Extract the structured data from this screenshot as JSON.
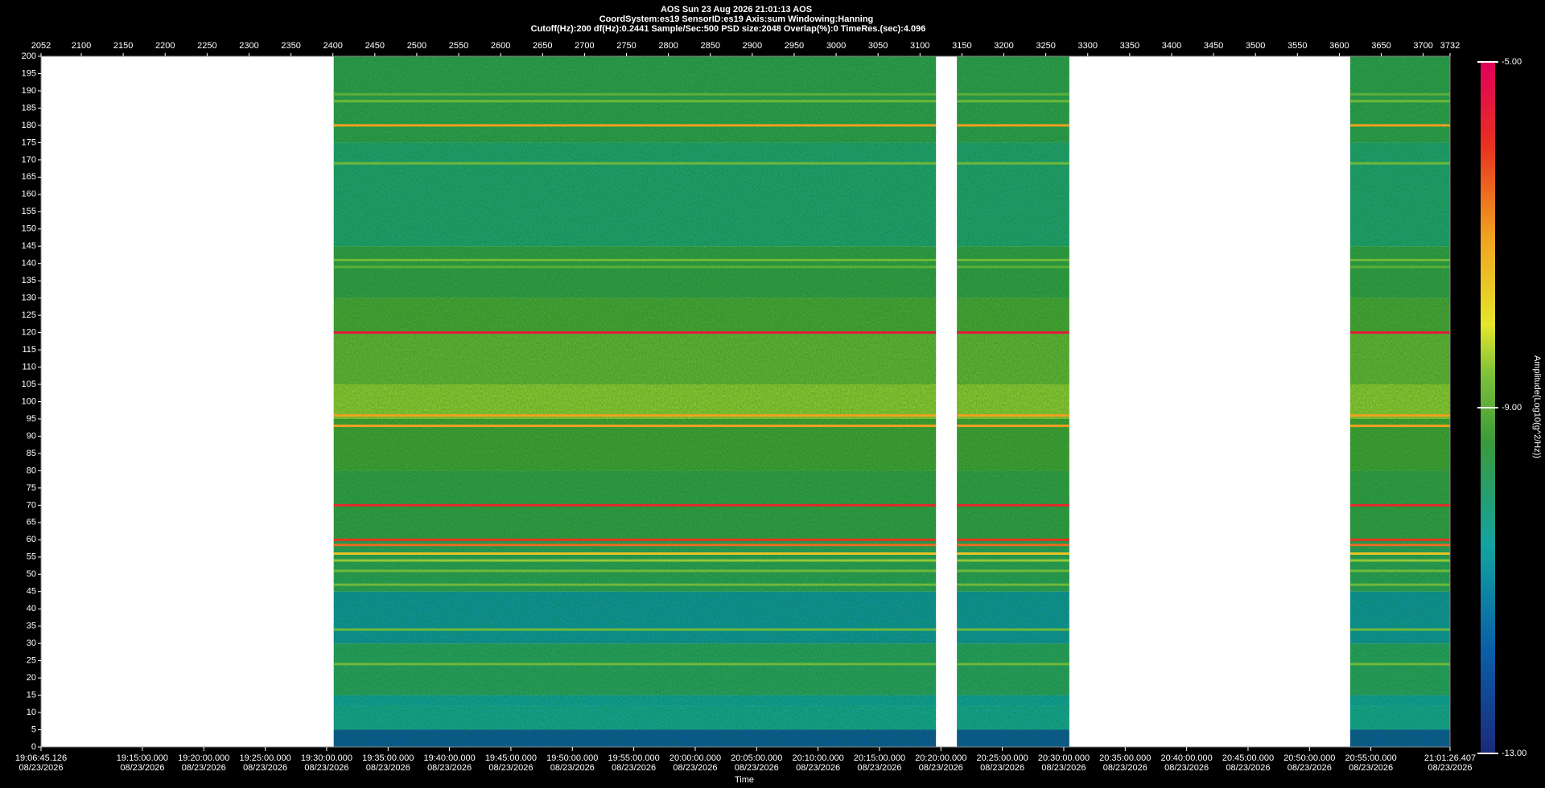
{
  "chart_data": {
    "type": "heatmap",
    "title": "AOS  Sun 23 Aug 2026 21:01:13  AOS",
    "subtitle": [
      "CoordSystem:es19    SensorID:es19     Axis:sum     Windowing:Hanning",
      "Cutoff(Hz):200       df(Hz):0.2441       Sample/Sec:500       PSD size:2048       Overlap(%):0         TimeRes.(sec):4.096"
    ],
    "x_label": "Time",
    "colorbar_label": "Amplitude(Log10(g^2/Hz))",
    "xlim": [
      2052,
      3732
    ],
    "x2ticks": [
      2052,
      2100,
      2150,
      2200,
      2250,
      2300,
      2350,
      2400,
      2450,
      2500,
      2550,
      2600,
      2650,
      2700,
      2750,
      2800,
      2850,
      2900,
      2950,
      3000,
      3050,
      3100,
      3150,
      3200,
      3250,
      3300,
      3350,
      3400,
      3450,
      3500,
      3550,
      3600,
      3650,
      3700,
      3732
    ],
    "xticks": [
      {
        "value": 2052,
        "label": "19:06:45.126",
        "date": "08/23/2026"
      },
      {
        "value": 2172.82,
        "label": "19:15:00.000",
        "date": "08/23/2026"
      },
      {
        "value": 2246.06,
        "label": "19:20:00.000",
        "date": "08/23/2026"
      },
      {
        "value": 2319.3,
        "label": "19:25:00.000",
        "date": "08/23/2026"
      },
      {
        "value": 2392.54,
        "label": "19:30:00.000",
        "date": "08/23/2026"
      },
      {
        "value": 2465.78,
        "label": "19:35:00.000",
        "date": "08/23/2026"
      },
      {
        "value": 2539.02,
        "label": "19:40:00.000",
        "date": "08/23/2026"
      },
      {
        "value": 2612.26,
        "label": "19:45:00.000",
        "date": "08/23/2026"
      },
      {
        "value": 2685.51,
        "label": "19:50:00.000",
        "date": "08/23/2026"
      },
      {
        "value": 2758.75,
        "label": "19:55:00.000",
        "date": "08/23/2026"
      },
      {
        "value": 2831.99,
        "label": "20:00:00.000",
        "date": "08/23/2026"
      },
      {
        "value": 2905.23,
        "label": "20:05:00.000",
        "date": "08/23/2026"
      },
      {
        "value": 2978.47,
        "label": "20:10:00.000",
        "date": "08/23/2026"
      },
      {
        "value": 3051.71,
        "label": "20:15:00.000",
        "date": "08/23/2026"
      },
      {
        "value": 3124.95,
        "label": "20:20:00.000",
        "date": "08/23/2026"
      },
      {
        "value": 3198.19,
        "label": "20:25:00.000",
        "date": "08/23/2026"
      },
      {
        "value": 3271.43,
        "label": "20:30:00.000",
        "date": "08/23/2026"
      },
      {
        "value": 3344.67,
        "label": "20:35:00.000",
        "date": "08/23/2026"
      },
      {
        "value": 3417.91,
        "label": "20:40:00.000",
        "date": "08/23/2026"
      },
      {
        "value": 3491.15,
        "label": "20:45:00.000",
        "date": "08/23/2026"
      },
      {
        "value": 3564.39,
        "label": "20:50:00.000",
        "date": "08/23/2026"
      },
      {
        "value": 3637.63,
        "label": "20:55:00.000",
        "date": "08/23/2026"
      },
      {
        "value": 3732,
        "label": "21:01:26.407",
        "date": "08/23/2026"
      }
    ],
    "ylim": [
      0,
      200
    ],
    "yticks": [
      0,
      5,
      10,
      15,
      20,
      25,
      30,
      35,
      40,
      45,
      50,
      55,
      60,
      65,
      70,
      75,
      80,
      85,
      90,
      95,
      100,
      105,
      110,
      115,
      120,
      125,
      130,
      135,
      140,
      145,
      150,
      155,
      160,
      165,
      170,
      175,
      180,
      185,
      190,
      195,
      200
    ],
    "clim": [
      -13,
      -5
    ],
    "cticks": [
      {
        "value": -5,
        "label": "-5.00"
      },
      {
        "value": -9,
        "label": "-9.00"
      },
      {
        "value": -13,
        "label": "-13.00"
      }
    ],
    "segments": [
      [
        2401,
        3119
      ],
      [
        3144,
        3278
      ],
      [
        3613,
        3732
      ]
    ],
    "bands": [
      {
        "low": 0,
        "high": 5,
        "amplitude": -12
      },
      {
        "low": 5,
        "high": 12,
        "amplitude": -10.5
      },
      {
        "low": 12,
        "high": 15,
        "amplitude": -10.7
      },
      {
        "low": 15,
        "high": 30,
        "amplitude": -9.9
      },
      {
        "low": 30,
        "high": 45,
        "amplitude": -10.9
      },
      {
        "low": 45,
        "high": 60,
        "amplitude": -9.8
      },
      {
        "low": 60,
        "high": 80,
        "amplitude": -9.6
      },
      {
        "low": 80,
        "high": 95,
        "amplitude": -9.3
      },
      {
        "low": 95,
        "high": 105,
        "amplitude": -8.5
      },
      {
        "low": 105,
        "high": 120,
        "amplitude": -8.9
      },
      {
        "low": 120,
        "high": 130,
        "amplitude": -9.2
      },
      {
        "low": 130,
        "high": 145,
        "amplitude": -9.6
      },
      {
        "low": 145,
        "high": 175,
        "amplitude": -10.1
      },
      {
        "low": 175,
        "high": 200,
        "amplitude": -9.7
      }
    ],
    "lines": [
      {
        "freq": 189,
        "amplitude": -9
      },
      {
        "freq": 187,
        "amplitude": -8.8
      },
      {
        "freq": 180,
        "amplitude": -7
      },
      {
        "freq": 169,
        "amplitude": -8.8
      },
      {
        "freq": 141,
        "amplitude": -8.8
      },
      {
        "freq": 139,
        "amplitude": -9
      },
      {
        "freq": 120,
        "amplitude": -5.5
      },
      {
        "freq": 96,
        "amplitude": -7
      },
      {
        "freq": 93,
        "amplitude": -7
      },
      {
        "freq": 70,
        "amplitude": -5.8
      },
      {
        "freq": 60,
        "amplitude": -6
      },
      {
        "freq": 58.5,
        "amplitude": -6.5
      },
      {
        "freq": 56,
        "amplitude": -7.5
      },
      {
        "freq": 54,
        "amplitude": -8.5
      },
      {
        "freq": 51,
        "amplitude": -8.8
      },
      {
        "freq": 47,
        "amplitude": -8.8
      },
      {
        "freq": 34,
        "amplitude": -8.8
      },
      {
        "freq": 24,
        "amplitude": -8.8
      }
    ]
  }
}
